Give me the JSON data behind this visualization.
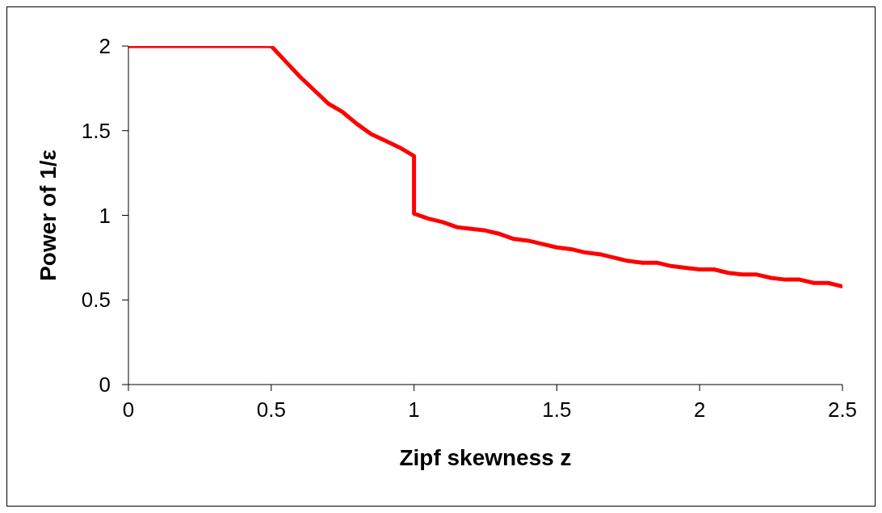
{
  "chart_data": {
    "type": "line",
    "xlabel": "Zipf skewness z",
    "ylabel": "Power of 1/ε",
    "xlim": [
      0,
      2.5
    ],
    "xticks": [
      0,
      0.5,
      1,
      1.5,
      2,
      2.5
    ],
    "ylim": [
      0,
      2
    ],
    "yticks": [
      0,
      0.5,
      1,
      1.5,
      2
    ],
    "grid": false,
    "marker": "none",
    "line_style": "solid",
    "series": [
      {
        "color": "#ff0000",
        "x": [
          0,
          0.5,
          0.55,
          0.6,
          0.65,
          0.7,
          0.75,
          0.8,
          0.85,
          0.9,
          0.95,
          1,
          1,
          1.05,
          1.1,
          1.15,
          1.2,
          1.25,
          1.3,
          1.35,
          1.4,
          1.45,
          1.5,
          1.55,
          1.6,
          1.65,
          1.7,
          1.75,
          1.8,
          1.85,
          1.9,
          1.95,
          2,
          2.05,
          2.1,
          2.15,
          2.2,
          2.25,
          2.3,
          2.35,
          2.4,
          2.45,
          2.5
        ],
        "values": [
          2,
          2,
          1.91,
          1.82,
          1.74,
          1.66,
          1.61,
          1.54,
          1.48,
          1.44,
          1.4,
          1.35,
          1.01,
          0.98,
          0.96,
          0.93,
          0.92,
          0.91,
          0.89,
          0.86,
          0.85,
          0.83,
          0.81,
          0.8,
          0.78,
          0.77,
          0.75,
          0.73,
          0.72,
          0.72,
          0.7,
          0.69,
          0.68,
          0.68,
          0.66,
          0.65,
          0.65,
          0.63,
          0.62,
          0.62,
          0.6,
          0.6,
          0.58
        ]
      }
    ]
  }
}
